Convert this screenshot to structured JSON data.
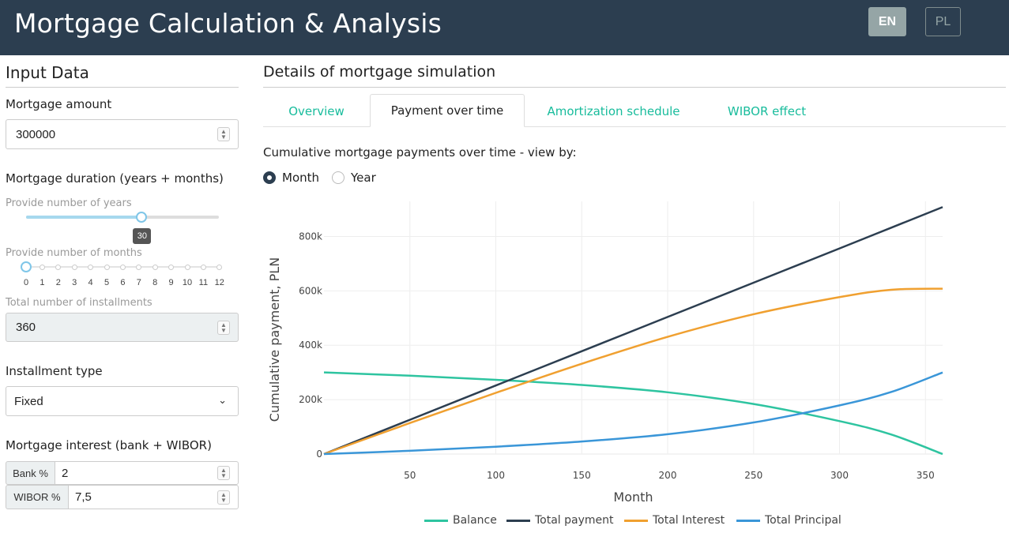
{
  "header": {
    "title": "Mortgage Calculation & Analysis",
    "lang_en": "EN",
    "lang_pl": "PL"
  },
  "sidebar": {
    "title": "Input Data",
    "amount_label": "Mortgage amount",
    "amount_value": "300000",
    "duration_label": "Mortgage duration (years + months)",
    "years_label": "Provide number of years",
    "years_value": "30",
    "years_min": 0,
    "years_max": 50,
    "years_fraction": 0.6,
    "months_label": "Provide number of months",
    "months_ticks": [
      "0",
      "1",
      "2",
      "3",
      "4",
      "5",
      "6",
      "7",
      "8",
      "9",
      "10",
      "11",
      "12"
    ],
    "months_value": 0,
    "installments_label": "Total number of installments",
    "installments_value": "360",
    "type_label": "Installment type",
    "type_value": "Fixed",
    "interest_label": "Mortgage interest (bank + WIBOR)",
    "bank_addon": "Bank %",
    "bank_value": "2",
    "wibor_addon": "WIBOR %",
    "wibor_value": "7,5"
  },
  "main": {
    "title": "Details of mortgage simulation",
    "tabs": [
      {
        "label": "Overview"
      },
      {
        "label": "Payment over time"
      },
      {
        "label": "Amortization schedule"
      },
      {
        "label": "WIBOR effect"
      }
    ],
    "active_tab": 1,
    "view_label": "Cumulative mortgage payments over time - view by:",
    "radio_month": "Month",
    "radio_year": "Year",
    "radio_selected": "Month"
  },
  "chart_data": {
    "type": "line",
    "xlabel": "Month",
    "ylabel": "Cumulative payment, PLN",
    "xlim": [
      0,
      360
    ],
    "ylim": [
      0,
      900000
    ],
    "x_ticks": [
      50,
      100,
      150,
      200,
      250,
      300,
      350
    ],
    "y_ticks": [
      0,
      200000,
      400000,
      600000,
      800000
    ],
    "y_tick_labels": [
      "0",
      "200k",
      "400k",
      "600k",
      "800k"
    ],
    "grid": true,
    "legend_position": "bottom",
    "x": [
      0,
      50,
      100,
      150,
      200,
      250,
      300,
      330,
      360
    ],
    "series": [
      {
        "name": "Balance",
        "color": "#2ec4a0",
        "values": [
          300000,
          288000,
          273000,
          254000,
          227000,
          184000,
          121000,
          72000,
          0
        ]
      },
      {
        "name": "Total payment",
        "color": "#2c3e50",
        "values": [
          0,
          126000,
          252000,
          378000,
          504000,
          630000,
          756000,
          832000,
          908000
        ]
      },
      {
        "name": "Total Interest",
        "color": "#f0a030",
        "values": [
          0,
          114000,
          225000,
          332000,
          431000,
          514000,
          577000,
          604000,
          608000
        ]
      },
      {
        "name": "Total Principal",
        "color": "#3a96d8",
        "values": [
          0,
          12000,
          27000,
          46000,
          73000,
          116000,
          179000,
          228000,
          300000
        ]
      }
    ]
  }
}
